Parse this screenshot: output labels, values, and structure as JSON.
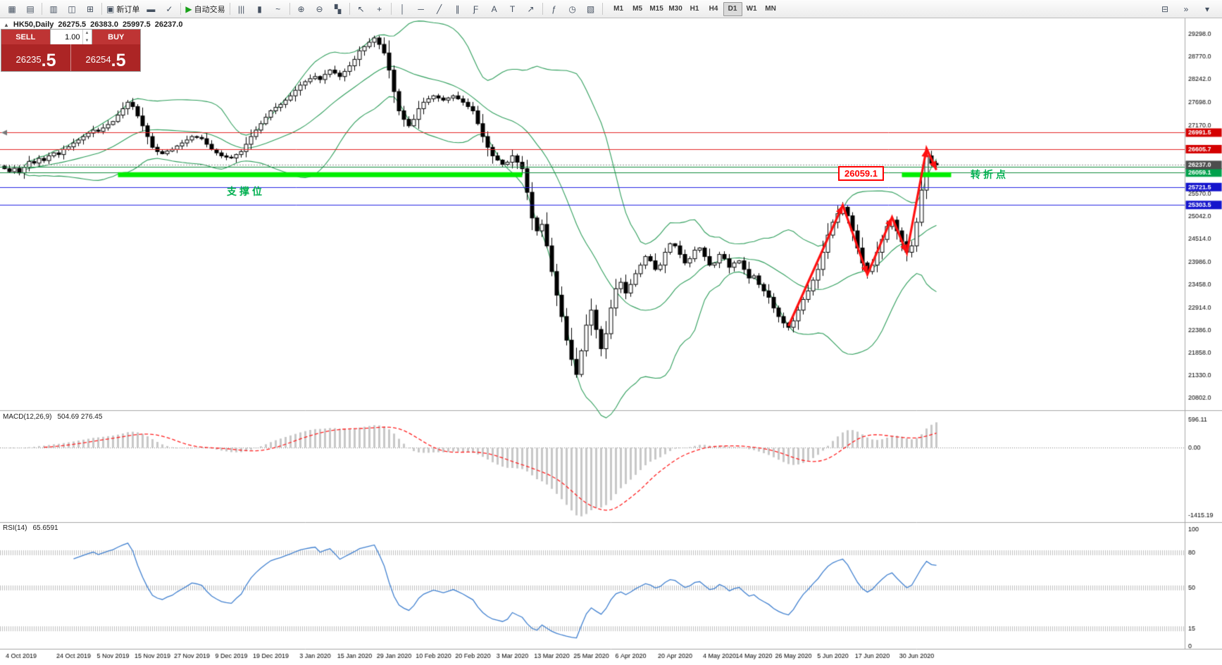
{
  "toolbar": {
    "icon_groups": [
      {
        "icons": [
          {
            "name": "new-chart-icon",
            "glyph": "▦"
          },
          {
            "name": "profiles-icon",
            "glyph": "▤"
          }
        ]
      },
      {
        "icons": [
          {
            "name": "market-watch-icon",
            "glyph": "▥"
          },
          {
            "name": "data-window-icon",
            "glyph": "◫"
          },
          {
            "name": "navigator-icon",
            "glyph": "⊞"
          }
        ]
      },
      {
        "icons": [
          {
            "name": "new-order-icon",
            "glyph": "▣",
            "label": "新订单"
          },
          {
            "name": "terminal-icon",
            "glyph": "▬"
          },
          {
            "name": "strategy-tester-icon",
            "glyph": "✓"
          }
        ]
      },
      {
        "icons": [
          {
            "name": "autotrading-icon",
            "glyph": "▶",
            "label": "自动交易",
            "green": true
          }
        ]
      },
      {
        "icons": [
          {
            "name": "bar-chart-icon",
            "glyph": "|||"
          },
          {
            "name": "candlestick-chart-icon",
            "glyph": "▮"
          },
          {
            "name": "line-chart-icon",
            "glyph": "~"
          }
        ]
      },
      {
        "icons": [
          {
            "name": "zoom-in-icon",
            "glyph": "⊕"
          },
          {
            "name": "zoom-out-icon",
            "glyph": "⊖"
          },
          {
            "name": "tile-windows-icon",
            "glyph": "▚"
          }
        ]
      },
      {
        "icons": [
          {
            "name": "cursor-icon",
            "glyph": "↖"
          },
          {
            "name": "crosshair-icon",
            "glyph": "+"
          }
        ]
      },
      {
        "icons": [
          {
            "name": "vertical-line-icon",
            "glyph": "│"
          },
          {
            "name": "horizontal-line-icon",
            "glyph": "─"
          },
          {
            "name": "trendline-icon",
            "glyph": "╱"
          },
          {
            "name": "channel-icon",
            "glyph": "∥"
          },
          {
            "name": "fibonacci-icon",
            "glyph": "Ƒ"
          },
          {
            "name": "text-icon",
            "glyph": "A"
          },
          {
            "name": "label-icon",
            "glyph": "T"
          },
          {
            "name": "arrows-icon",
            "glyph": "↗"
          }
        ]
      },
      {
        "icons": [
          {
            "name": "indicators-icon",
            "glyph": "ƒ"
          },
          {
            "name": "periods-icon",
            "glyph": "◷"
          },
          {
            "name": "template-icon",
            "glyph": "▧"
          }
        ]
      }
    ],
    "timeframes": [
      "M1",
      "M5",
      "M15",
      "M30",
      "H1",
      "H4",
      "D1",
      "W1",
      "MN"
    ],
    "active_timeframe": "D1",
    "right_icons": [
      {
        "name": "window-icon",
        "glyph": "⊟"
      },
      {
        "name": "overflow-icon",
        "glyph": "»"
      },
      {
        "name": "panel-toggle-icon",
        "glyph": "▾"
      }
    ]
  },
  "chart_header": {
    "collapse_icon": "▲",
    "symbol": "HK50,Daily",
    "open": "26275.5",
    "high": "26383.0",
    "low": "25997.5",
    "close": "26237.0"
  },
  "trade_panel": {
    "sell_label": "SELL",
    "buy_label": "BUY",
    "volume": "1.00",
    "spinner_up": "▲",
    "spinner_down": "▼",
    "sell_price_main": "26235",
    "sell_price_pips": ".5",
    "buy_price_main": "26254",
    "buy_price_pips": ".5"
  },
  "main_chart": {
    "price_axis_ticks": [
      "29298.0",
      "28770.0",
      "28242.0",
      "27698.0",
      "27170.0",
      "25570.0",
      "25042.0",
      "24514.0",
      "23986.0",
      "23458.0",
      "22914.0",
      "22386.0",
      "21858.0",
      "21330.0",
      "20802.0"
    ],
    "lines": [
      {
        "name": "resistance-line-upper",
        "price": 26991.5,
        "color": "#E32525",
        "width": 1,
        "axis_label": "26991.5",
        "label_bg": "#D40000"
      },
      {
        "name": "resistance-line-lower",
        "price": 26605.7,
        "color": "#E32525",
        "width": 1,
        "axis_label": "26605.7",
        "label_bg": "#D40000"
      },
      {
        "name": "support-zone-upper-line",
        "price": 26200,
        "color": "#0F8C3C",
        "width": 1,
        "axis_label": null,
        "label_bg": null
      },
      {
        "name": "support-zone-lower-line",
        "price": 26059.1,
        "color": "#0F8C3C",
        "width": 1,
        "axis_label": "26059.1",
        "label_bg": "#00A14B"
      },
      {
        "name": "blue-support-line-1",
        "price": 25721.5,
        "color": "#2525E3",
        "width": 1,
        "axis_label": "25721.5",
        "label_bg": "#1414CC"
      },
      {
        "name": "blue-support-line-2",
        "price": 25303.5,
        "color": "#2525E3",
        "width": 1,
        "axis_label": "25303.5",
        "label_bg": "#1414CC"
      }
    ],
    "segments": [
      {
        "name": "support-zone-left-segment",
        "from_bar": 23,
        "to_bar": 105,
        "price": 26010,
        "color": "#00EE00",
        "width": 7
      },
      {
        "name": "support-zone-right-segment",
        "from_bar": 182,
        "to_bar": 192,
        "price": 26010,
        "color": "#00EE00",
        "width": 7
      }
    ],
    "current_price": {
      "label": "26237.0",
      "value": 26237.0,
      "label_bg": "#4D4D4D",
      "line_color": "#909090"
    },
    "left_marker_price": 26991.5,
    "annotations": {
      "support_label": {
        "text": "支撑位",
        "color": "#00B050"
      },
      "pivot_label": {
        "text": "转折点",
        "color": "#00B050"
      },
      "price_box": {
        "text": "26059.1",
        "color": "#FF0000"
      }
    },
    "zigzag": {
      "color": "#FF1010",
      "points": [
        [
          159,
          22480
        ],
        [
          170,
          25300
        ],
        [
          175,
          23680
        ],
        [
          180,
          25020
        ],
        [
          183,
          24180
        ],
        [
          187,
          26620
        ],
        [
          189,
          26120
        ]
      ]
    }
  },
  "chart_data": {
    "type": "candlestick",
    "title": "HK50,Daily",
    "price_range": [
      20580,
      29560
    ],
    "x_axis_labels": [
      [
        "4 Oct 2019",
        0
      ],
      [
        "24 Oct 2019",
        14
      ],
      [
        "5 Nov 2019",
        22
      ],
      [
        "15 Nov 2019",
        30
      ],
      [
        "27 Nov 2019",
        38
      ],
      [
        "9 Dec 2019",
        46
      ],
      [
        "19 Dec 2019",
        54
      ],
      [
        "3 Jan 2020",
        63
      ],
      [
        "15 Jan 2020",
        71
      ],
      [
        "29 Jan 2020",
        79
      ],
      [
        "10 Feb 2020",
        87
      ],
      [
        "20 Feb 2020",
        95
      ],
      [
        "3 Mar 2020",
        103
      ],
      [
        "13 Mar 2020",
        111
      ],
      [
        "25 Mar 2020",
        119
      ],
      [
        "6 Apr 2020",
        127
      ],
      [
        "20 Apr 2020",
        136
      ],
      [
        "4 May 2020",
        145
      ],
      [
        "14 May 2020",
        152
      ],
      [
        "26 May 2020",
        160
      ],
      [
        "5 Jun 2020",
        168
      ],
      [
        "17 Jun 2020",
        176
      ],
      [
        "30 Jun 2020",
        185
      ]
    ],
    "closes": [
      26150,
      26080,
      26160,
      26050,
      26180,
      26320,
      26280,
      26390,
      26340,
      26450,
      26520,
      26480,
      26600,
      26660,
      26750,
      26820,
      26900,
      26980,
      27050,
      27020,
      27100,
      27180,
      27250,
      27400,
      27550,
      27700,
      27600,
      27380,
      27150,
      26900,
      26650,
      26550,
      26500,
      26560,
      26600,
      26680,
      26750,
      26820,
      26900,
      26880,
      26850,
      26720,
      26600,
      26520,
      26450,
      26420,
      26400,
      26480,
      26550,
      26720,
      26900,
      27050,
      27200,
      27350,
      27500,
      27580,
      27650,
      27750,
      27850,
      27980,
      28100,
      28180,
      28250,
      28300,
      28230,
      28350,
      28450,
      28380,
      28300,
      28420,
      28550,
      28700,
      28900,
      29000,
      29100,
      29200,
      29050,
      28850,
      28450,
      27950,
      27500,
      27300,
      27150,
      27300,
      27550,
      27700,
      27780,
      27850,
      27800,
      27750,
      27800,
      27850,
      27780,
      27700,
      27600,
      27500,
      27200,
      26900,
      26650,
      26450,
      26350,
      26250,
      26300,
      26450,
      26300,
      26150,
      25600,
      25000,
      24700,
      24850,
      24350,
      23750,
      23200,
      22700,
      22150,
      21700,
      21350,
      21900,
      22500,
      22850,
      22400,
      21950,
      22300,
      22900,
      23350,
      23500,
      23250,
      23450,
      23700,
      23900,
      24100,
      24000,
      23800,
      23900,
      24200,
      24400,
      24350,
      24150,
      23950,
      24050,
      24250,
      24300,
      24100,
      23900,
      23950,
      24150,
      24050,
      23850,
      23950,
      24000,
      23800,
      23600,
      23650,
      23450,
      23300,
      23150,
      22900,
      22700,
      22550,
      22450,
      22600,
      22850,
      23100,
      23300,
      23550,
      23800,
      24200,
      24600,
      24900,
      25100,
      25250,
      25050,
      24700,
      24300,
      23950,
      23750,
      23900,
      24200,
      24500,
      24800,
      24950,
      24700,
      24450,
      24200,
      24350,
      24900,
      25650,
      26450,
      26275.5,
      26237
    ],
    "indicators": {
      "bollinger": {
        "period": 20,
        "deviation": 2,
        "color": "#2E9E5B"
      },
      "macd": {
        "label": "MACD(12,26,9)",
        "values_label": "504.69 276.45",
        "fast": 12,
        "slow": 26,
        "signal": 9,
        "histogram_color": "#C8C8C8",
        "signal_color": "#FF2020",
        "axis_labels": [
          "596.11",
          "0.00",
          "-1415.19"
        ],
        "range": [
          -1500,
          650
        ]
      },
      "rsi": {
        "label": "RSI(14)",
        "value_label": "65.6591",
        "period": 14,
        "color": "#4080D0",
        "levels": [
          "100",
          "80",
          "50",
          "15",
          "0"
        ],
        "range": [
          0,
          100
        ]
      }
    }
  }
}
